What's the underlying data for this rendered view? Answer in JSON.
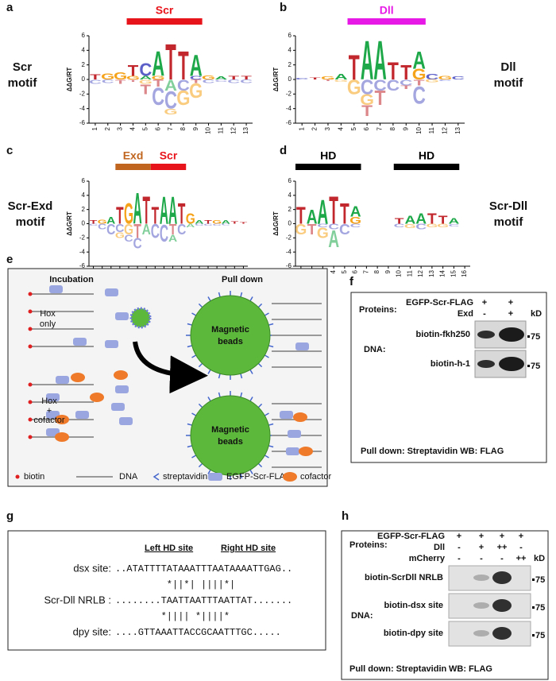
{
  "letter_colors": {
    "A": "#1fa84a",
    "C": "#5b5fc7",
    "G": "#f5a31a",
    "T": "#c1272d"
  },
  "logos": [
    {
      "label": "a",
      "motif": [
        "Scr",
        "motif"
      ],
      "y_label": "ΔΔG/RT",
      "ylim": [
        -6,
        6
      ],
      "yticks": [
        -6,
        -4,
        -2,
        0,
        2,
        4,
        6
      ],
      "xticks": [
        1,
        2,
        3,
        4,
        5,
        6,
        7,
        8,
        9,
        10,
        11,
        12,
        13
      ],
      "bars": [
        {
          "text": "Scr",
          "xrange": [
            4,
            9
          ],
          "color": "#e8141b"
        }
      ],
      "columns": [
        {
          "up": [
            [
              "T",
              0.7
            ]
          ],
          "down": [
            [
              "C",
              0.6
            ]
          ]
        },
        {
          "up": [
            [
              "G",
              0.9
            ]
          ],
          "down": [
            [
              "C",
              0.5
            ]
          ]
        },
        {
          "up": [
            [
              "G",
              1
            ]
          ],
          "down": [
            [
              "T",
              0.6
            ]
          ]
        },
        {
          "up": [
            [
              "G",
              0.5
            ],
            [
              "T",
              1.5
            ]
          ],
          "down": [
            [
              "T",
              0.3
            ]
          ]
        },
        {
          "up": [
            [
              "A",
              0.5
            ],
            [
              "C",
              1.8
            ]
          ],
          "down": [
            [
              "G",
              0.6
            ],
            [
              "T",
              1.4
            ]
          ]
        },
        {
          "up": [
            [
              "G",
              0.5
            ],
            [
              "A",
              3.5
            ]
          ],
          "down": [
            [
              "T",
              1
            ],
            [
              "C",
              2.5
            ]
          ]
        },
        {
          "up": [
            [
              "T",
              5
            ]
          ],
          "down": [
            [
              "A",
              1.5
            ],
            [
              "C",
              2.5
            ],
            [
              "G",
              0.8
            ]
          ]
        },
        {
          "up": [
            [
              "T",
              4
            ]
          ],
          "down": [
            [
              "C",
              1.5
            ],
            [
              "G",
              2
            ]
          ]
        },
        {
          "up": [
            [
              "C",
              0.5
            ],
            [
              "A",
              3
            ]
          ],
          "down": [
            [
              "T",
              0.5
            ],
            [
              "G",
              2
            ]
          ]
        },
        {
          "up": [
            [
              "G",
              0.6
            ]
          ],
          "down": [
            [
              "C",
              0.5
            ]
          ]
        },
        {
          "up": [
            [
              "A",
              0.4
            ]
          ],
          "down": [
            [
              "C",
              0.3
            ]
          ]
        },
        {
          "up": [
            [
              "T",
              0.5
            ]
          ],
          "down": [
            [
              "C",
              0.5
            ]
          ]
        },
        {
          "up": [
            [
              "T",
              0.5
            ]
          ],
          "down": [
            [
              "C",
              0.5
            ]
          ]
        }
      ]
    },
    {
      "label": "b",
      "motif": [
        "Dll",
        "motif"
      ],
      "y_label": "ΔΔG/RT",
      "ylim": [
        -6,
        6
      ],
      "yticks": [
        -6,
        -4,
        -2,
        0,
        2,
        4,
        6
      ],
      "xticks": [
        1,
        2,
        3,
        4,
        5,
        6,
        7,
        8,
        9,
        10,
        11,
        12,
        13
      ],
      "bars": [
        {
          "text": "Dll",
          "xrange": [
            5,
            10
          ],
          "color": "#e619e6"
        }
      ],
      "columns": [
        {
          "up": [
            [
              "C",
              0.2
            ]
          ],
          "down": []
        },
        {
          "up": [
            [
              "T",
              0.3
            ]
          ],
          "down": []
        },
        {
          "up": [
            [
              "G",
              0.4
            ]
          ],
          "down": [
            [
              "T",
              0.2
            ]
          ]
        },
        {
          "up": [
            [
              "A",
              0.8
            ]
          ],
          "down": [
            [
              "G",
              0.3
            ]
          ]
        },
        {
          "up": [
            [
              "T",
              3.5
            ]
          ],
          "down": [
            [
              "G",
              2
            ]
          ]
        },
        {
          "up": [
            [
              "A",
              5.5
            ]
          ],
          "down": [
            [
              "C",
              2
            ],
            [
              "G",
              1.5
            ],
            [
              "T",
              1.5
            ]
          ]
        },
        {
          "up": [
            [
              "A",
              5.5
            ]
          ],
          "down": [
            [
              "C",
              1.5
            ],
            [
              "T",
              2
            ]
          ]
        },
        {
          "up": [
            [
              "T",
              2.5
            ]
          ],
          "down": [
            [
              "C",
              1.5
            ]
          ]
        },
        {
          "up": [
            [
              "T",
              2
            ]
          ],
          "down": [
            [
              "C",
              0.8
            ],
            [
              "T",
              0.5
            ]
          ]
        },
        {
          "up": [
            [
              "G",
              1.5
            ],
            [
              "A",
              2.5
            ]
          ],
          "down": [
            [
              "T",
              0.8
            ],
            [
              "C",
              2.5
            ]
          ]
        },
        {
          "up": [
            [
              "C",
              0.8
            ]
          ],
          "down": [
            [
              "G",
              0.4
            ]
          ]
        },
        {
          "up": [
            [
              "G",
              0.5
            ]
          ],
          "down": [
            [
              "C",
              0.2
            ]
          ]
        },
        {
          "up": [
            [
              "C",
              0.4
            ]
          ],
          "down": []
        }
      ]
    },
    {
      "label": "c",
      "motif": [
        "Scr-Exd",
        "motif"
      ],
      "y_label": "ΔΔG/RT",
      "ylim": [
        -6,
        6
      ],
      "yticks": [
        -6,
        -4,
        -2,
        0,
        2,
        4,
        6
      ],
      "xticks": [
        1,
        2,
        3,
        4,
        5,
        6,
        7,
        8,
        9,
        10,
        11,
        12,
        13,
        14,
        15,
        16,
        17,
        18
      ],
      "bars": [
        {
          "text": "Exd",
          "xrange": [
            4,
            7
          ],
          "color": "#c0651f"
        },
        {
          "text": "Scr",
          "xrange": [
            8,
            11
          ],
          "color": "#e8141b"
        }
      ],
      "columns": [
        {
          "up": [
            [
              "T",
              0.5
            ]
          ],
          "down": [
            [
              "C",
              0.3
            ]
          ]
        },
        {
          "up": [
            [
              "G",
              0.6
            ]
          ],
          "down": [
            [
              "C",
              0.8
            ]
          ]
        },
        {
          "up": [
            [
              "A",
              1
            ]
          ],
          "down": [
            [
              "C",
              1.5
            ]
          ]
        },
        {
          "up": [
            [
              "T",
              2.5
            ]
          ],
          "down": [
            [
              "C",
              1.2
            ],
            [
              "G",
              0.8
            ]
          ]
        },
        {
          "up": [
            [
              "G",
              3
            ]
          ],
          "down": [
            [
              "G",
              1.5
            ],
            [
              "C",
              1
            ]
          ]
        },
        {
          "up": [
            [
              "A",
              4.5
            ]
          ],
          "down": [
            [
              "T",
              2
            ],
            [
              "C",
              1.5
            ]
          ]
        },
        {
          "up": [
            [
              "T",
              4
            ]
          ],
          "down": [
            [
              "A",
              1.5
            ]
          ]
        },
        {
          "up": [
            [
              "T",
              2.5
            ]
          ],
          "down": [
            [
              "C",
              2
            ]
          ]
        },
        {
          "up": [
            [
              "A",
              4
            ]
          ],
          "down": [
            [
              "C",
              2.5
            ]
          ]
        },
        {
          "up": [
            [
              "A",
              4
            ]
          ],
          "down": [
            [
              "T",
              1.5
            ],
            [
              "A",
              1
            ]
          ]
        },
        {
          "up": [
            [
              "T",
              3
            ]
          ],
          "down": [
            [
              "C",
              1.5
            ]
          ]
        },
        {
          "up": [
            [
              "G",
              1.5
            ]
          ],
          "down": [
            [
              "A",
              0.5
            ]
          ]
        },
        {
          "up": [
            [
              "A",
              0.5
            ]
          ],
          "down": [
            [
              "C",
              0.3
            ]
          ]
        },
        {
          "up": [
            [
              "T",
              0.5
            ]
          ],
          "down": [
            [
              "C",
              0.3
            ]
          ]
        },
        {
          "up": [
            [
              "G",
              0.5
            ]
          ],
          "down": [
            [
              "C",
              0.3
            ]
          ]
        },
        {
          "up": [
            [
              "A",
              0.5
            ]
          ],
          "down": [
            [
              "C",
              0.2
            ]
          ]
        },
        {
          "up": [
            [
              "T",
              0.4
            ]
          ],
          "down": []
        },
        {
          "up": [
            [
              "T",
              0.2
            ]
          ],
          "down": []
        }
      ]
    },
    {
      "label": "d",
      "motif": [
        "Scr-Dll",
        "motif"
      ],
      "y_label": "ΔΔG/RT",
      "ylim": [
        -6,
        6
      ],
      "yticks": [
        -6,
        -4,
        -2,
        0,
        2,
        4,
        6
      ],
      "xticks": [
        1,
        2,
        3,
        4,
        5,
        6,
        7,
        8,
        9,
        10,
        11,
        12,
        13,
        14,
        15,
        16
      ],
      "bars": [
        {
          "text": "HD",
          "xrange": [
            1,
            6
          ],
          "color": "#000000"
        },
        {
          "text": "HD",
          "xrange": [
            10,
            15
          ],
          "color": "#000000"
        }
      ],
      "columns": [
        {
          "up": [
            [
              "T",
              2.5
            ]
          ],
          "down": [
            [
              "G",
              1.5
            ]
          ]
        },
        {
          "up": [
            [
              "A",
              2
            ]
          ],
          "down": [
            [
              "T",
              1.5
            ]
          ]
        },
        {
          "up": [
            [
              "A",
              3.5
            ]
          ],
          "down": [
            [
              "C",
              0.5
            ],
            [
              "G",
              1.5
            ]
          ]
        },
        {
          "up": [
            [
              "T",
              4
            ]
          ],
          "down": [
            [
              "C",
              0.8
            ],
            [
              "A",
              2.5
            ]
          ]
        },
        {
          "up": [
            [
              "T",
              3
            ]
          ],
          "down": [
            [
              "C",
              1.5
            ]
          ]
        },
        {
          "up": [
            [
              "G",
              1
            ],
            [
              "A",
              1.5
            ]
          ],
          "down": [
            [
              "C",
              0.5
            ]
          ]
        },
        {
          "up": [],
          "down": []
        },
        {
          "up": [],
          "down": []
        },
        {
          "up": [],
          "down": []
        },
        {
          "up": [
            [
              "T",
              0.8
            ]
          ],
          "down": [
            [
              "C",
              0.5
            ]
          ]
        },
        {
          "up": [
            [
              "A",
              1.2
            ]
          ],
          "down": [
            [
              "G",
              0.6
            ]
          ]
        },
        {
          "up": [
            [
              "A",
              1.5
            ]
          ],
          "down": [
            [
              "C",
              0.8
            ]
          ]
        },
        {
          "up": [
            [
              "T",
              1.5
            ]
          ],
          "down": [
            [
              "G",
              0.5
            ]
          ]
        },
        {
          "up": [
            [
              "T",
              1.2
            ]
          ],
          "down": [
            [
              "G",
              0.5
            ]
          ]
        },
        {
          "up": [
            [
              "A",
              0.8
            ]
          ],
          "down": [
            [
              "C",
              0.4
            ]
          ]
        },
        {
          "up": [],
          "down": []
        }
      ]
    }
  ],
  "e": {
    "label": "e",
    "incubation": "Incubation",
    "pull_down": "Pull down",
    "hox_only": [
      "Hox",
      "only"
    ],
    "hox_cofactor": [
      "Hox",
      "+",
      "cofactor"
    ],
    "beads": [
      "Magnetic",
      "beads"
    ],
    "legend": [
      "biotin",
      "DNA",
      "streptavidin",
      "EGFP-Scr-FLAG",
      "cofactor"
    ]
  },
  "f": {
    "label": "f",
    "proteins": "Proteins:",
    "rows": [
      {
        "name": "EGFP-Scr-FLAG",
        "signs": [
          "+",
          "+"
        ]
      },
      {
        "name": "Exd",
        "signs": [
          "-",
          "+"
        ]
      }
    ],
    "kd": "kD",
    "dna": "DNA:",
    "blots": [
      {
        "name": "biotin-fkh250",
        "marker": "75"
      },
      {
        "name": "biotin-h-1",
        "marker": "75"
      }
    ],
    "footer": "Pull down: Streptavidin WB: FLAG"
  },
  "g": {
    "label": "g",
    "left": "Left HD site",
    "right": "Right HD site",
    "rows": [
      {
        "name": "dsx site:",
        "seq": "..ATATTTTATAAATTTAATAAAATTGAG.."
      },
      {
        "name": "",
        "seq": "         *||*| ||||*|"
      },
      {
        "name": "Scr-Dll NRLB :",
        "seq": "........TAATTAATTTAATTAT......."
      },
      {
        "name": "",
        "seq": "        *|||| *||||*"
      },
      {
        "name": "dpy site:",
        "seq": "....GTTAAATTACCGCAATTTGC....."
      }
    ]
  },
  "h": {
    "label": "h",
    "proteins": "Proteins:",
    "rows": [
      {
        "name": "EGFP-Scr-FLAG",
        "signs": [
          "+",
          "+",
          "+",
          "+"
        ]
      },
      {
        "name": "Dll",
        "signs": [
          "-",
          "+",
          "++",
          "-"
        ]
      },
      {
        "name": "mCherry",
        "signs": [
          "-",
          "-",
          "-",
          "++"
        ]
      }
    ],
    "kd": "kD",
    "dna": "DNA:",
    "blots": [
      {
        "name": "biotin-ScrDll NRLB",
        "marker": "75"
      },
      {
        "name": "biotin-dsx site",
        "marker": "75"
      },
      {
        "name": "biotin-dpy site",
        "marker": "75"
      }
    ],
    "footer": [
      "Pull down: Streptavidin",
      "WB: FLAG"
    ]
  }
}
